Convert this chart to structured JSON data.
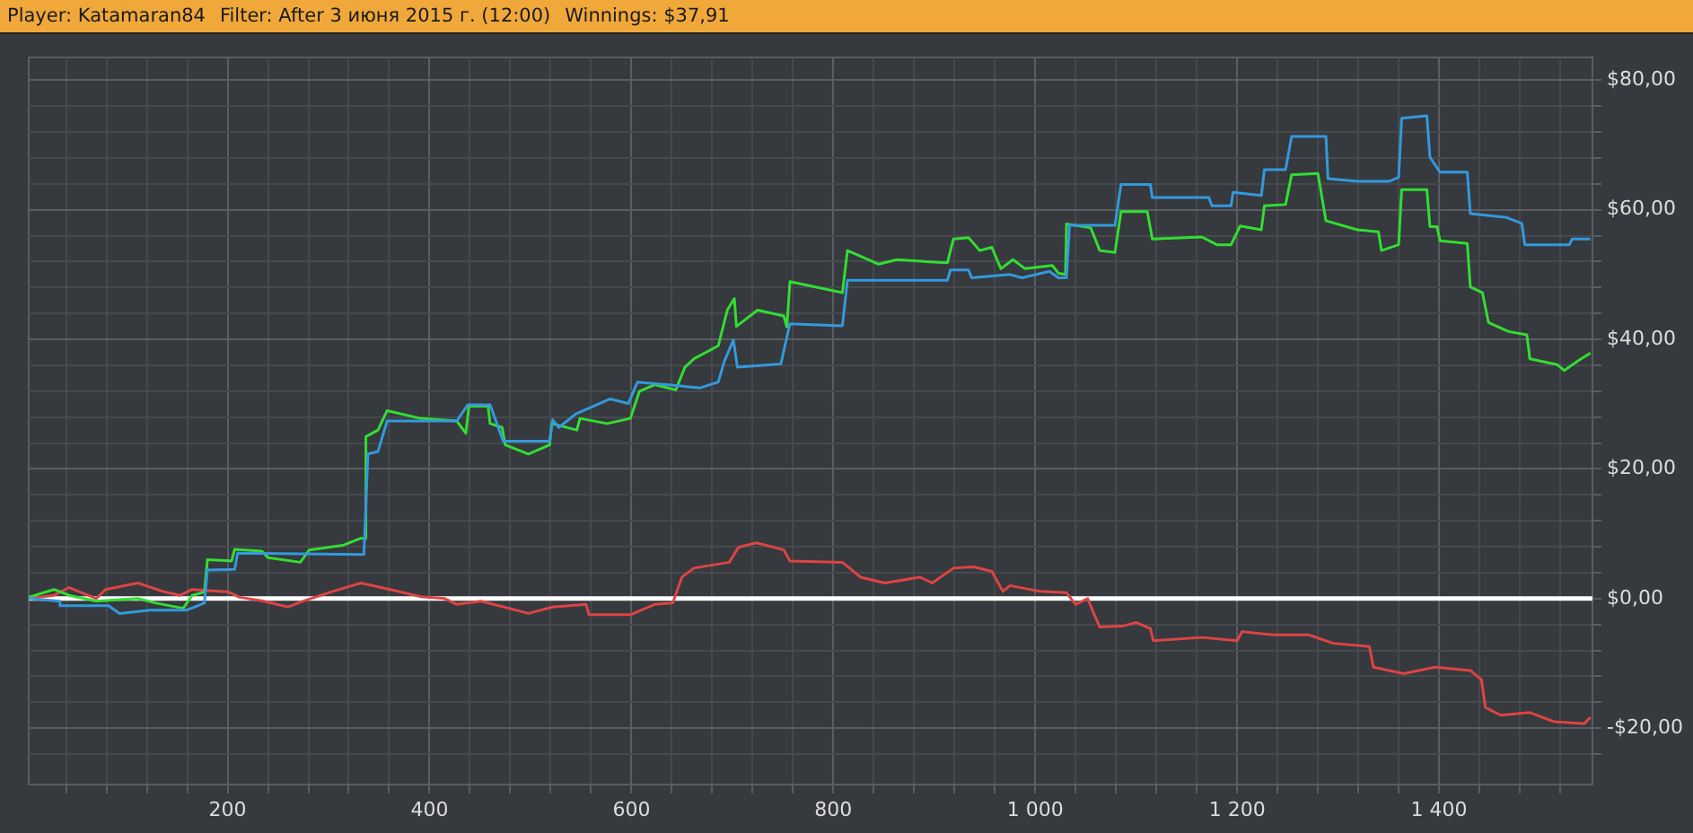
{
  "chart_data": {
    "type": "line",
    "title": "Player: Katamaran84",
    "subtitle": "Filter: After 3 июня 2015 г. (12:00)",
    "annotations": [
      "Winnings: $37,91"
    ],
    "xlim": [
      3,
      1552
    ],
    "ylim": [
      -28.7,
      83.5
    ],
    "xticks": [
      {
        "value": 40,
        "label": null
      },
      {
        "value": 80,
        "label": null
      },
      {
        "value": 120,
        "label": null
      },
      {
        "value": 160,
        "label": null
      },
      200,
      {
        "value": 240,
        "label": null
      },
      {
        "value": 280,
        "label": null
      },
      {
        "value": 320,
        "label": null
      },
      {
        "value": 360,
        "label": null
      },
      400,
      {
        "value": 440,
        "label": null
      },
      {
        "value": 480,
        "label": null
      },
      {
        "value": 520,
        "label": null
      },
      {
        "value": 560,
        "label": null
      },
      600,
      {
        "value": 640,
        "label": null
      },
      {
        "value": 680,
        "label": null
      },
      {
        "value": 720,
        "label": null
      },
      {
        "value": 760,
        "label": null
      },
      800,
      {
        "value": 840,
        "label": null
      },
      {
        "value": 880,
        "label": null
      },
      {
        "value": 920,
        "label": null
      },
      {
        "value": 960,
        "label": null
      },
      {
        "value": 1000,
        "label": "1 000"
      },
      {
        "value": 1040,
        "label": null
      },
      {
        "value": 1080,
        "label": null
      },
      {
        "value": 1120,
        "label": null
      },
      {
        "value": 1160,
        "label": null
      },
      {
        "value": 1200,
        "label": "1 200"
      },
      {
        "value": 1240,
        "label": null
      },
      {
        "value": 1280,
        "label": null
      },
      {
        "value": 1320,
        "label": null
      },
      {
        "value": 1360,
        "label": null
      },
      {
        "value": 1400,
        "label": "1 400"
      },
      {
        "value": 1440,
        "label": null
      },
      {
        "value": 1480,
        "label": null
      },
      {
        "value": 1520,
        "label": null
      }
    ],
    "yticks": [
      {
        "value": -24,
        "label": null
      },
      {
        "value": -20,
        "label": "-$20,00"
      },
      {
        "value": -16,
        "label": null
      },
      {
        "value": -12,
        "label": null
      },
      {
        "value": -8,
        "label": null
      },
      {
        "value": -4,
        "label": null
      },
      {
        "value": 0,
        "label": "$0,00"
      },
      {
        "value": 4,
        "label": null
      },
      {
        "value": 8,
        "label": null
      },
      {
        "value": 12,
        "label": null
      },
      {
        "value": 16,
        "label": null
      },
      {
        "value": 20,
        "label": "$20,00"
      },
      {
        "value": 24,
        "label": null
      },
      {
        "value": 28,
        "label": null
      },
      {
        "value": 32,
        "label": null
      },
      {
        "value": 36,
        "label": null
      },
      {
        "value": 40,
        "label": "$40,00"
      },
      {
        "value": 44,
        "label": null
      },
      {
        "value": 48,
        "label": null
      },
      {
        "value": 52,
        "label": null
      },
      {
        "value": 56,
        "label": null
      },
      {
        "value": 60,
        "label": "$60,00"
      },
      {
        "value": 64,
        "label": null
      },
      {
        "value": 68,
        "label": null
      },
      {
        "value": 72,
        "label": null
      },
      {
        "value": 76,
        "label": null
      },
      {
        "value": 80,
        "label": "$80,00"
      }
    ],
    "grid": true,
    "legend": false,
    "marker": "none",
    "line_style": "solid",
    "ref_lines": [
      {
        "axis": "y",
        "value": 0,
        "label": null,
        "color": "#ffffff"
      }
    ],
    "series": [
      {
        "color": "#3399dd",
        "x": [
          3,
          34,
          34,
          82,
          93,
          123,
          159,
          177,
          180,
          207,
          210,
          335,
          339,
          349,
          358,
          427,
          438,
          460,
          473,
          519,
          522,
          528,
          545,
          579,
          597,
          606,
          642,
          668,
          686,
          692,
          701,
          705,
          748,
          757,
          809,
          814,
          913,
          916,
          934,
          937,
          975,
          987,
          1014,
          1023,
          1031,
          1034,
          1079,
          1085,
          1114,
          1116,
          1172,
          1175,
          1194,
          1196,
          1224,
          1227,
          1248,
          1254,
          1288,
          1290,
          1319,
          1351,
          1360,
          1363,
          1388,
          1391,
          1401,
          1428,
          1431,
          1467,
          1482,
          1485,
          1529,
          1532,
          1550
        ],
        "values": [
          0,
          -0.4,
          -1.1,
          -1.1,
          -2.3,
          -1.8,
          -1.8,
          -0.7,
          4.4,
          4.5,
          7,
          6.8,
          22.3,
          22.7,
          27.4,
          27.4,
          29.9,
          29.9,
          24.3,
          24.3,
          27.6,
          26.4,
          28.5,
          30.8,
          30.1,
          33.4,
          32.9,
          32.5,
          33.4,
          36.6,
          39.9,
          35.7,
          36.2,
          42.4,
          42.1,
          49.1,
          49.1,
          50.7,
          50.7,
          49.5,
          50,
          49.5,
          50.5,
          49.5,
          49.5,
          57.6,
          57.6,
          63.9,
          63.9,
          61.9,
          61.9,
          60.6,
          60.6,
          62.7,
          62.2,
          66.2,
          66.2,
          71.3,
          71.3,
          64.8,
          64.4,
          64.4,
          65,
          74.1,
          74.5,
          68.1,
          65.8,
          65.8,
          59.4,
          58.8,
          57.9,
          54.6,
          54.6,
          55.5,
          55.5
        ]
      },
      {
        "color": "#33dd33",
        "x": [
          3,
          28,
          43,
          70,
          111,
          129,
          156,
          165,
          177,
          180,
          204,
          207,
          234,
          240,
          272,
          281,
          314,
          332,
          336,
          337,
          349,
          358,
          391,
          427,
          436,
          439,
          458,
          460,
          472,
          475,
          498,
          519,
          521,
          546,
          549,
          576,
          599,
          608,
          623,
          644,
          653,
          662,
          686,
          695,
          702,
          704,
          725,
          751,
          754,
          757,
          809,
          814,
          845,
          863,
          892,
          913,
          919,
          934,
          945,
          957,
          966,
          978,
          990,
          1017,
          1023,
          1030,
          1031,
          1055,
          1064,
          1079,
          1085,
          1111,
          1116,
          1165,
          1180,
          1194,
          1203,
          1224,
          1227,
          1248,
          1254,
          1280,
          1288,
          1319,
          1340,
          1343,
          1360,
          1363,
          1388,
          1391,
          1398,
          1401,
          1428,
          1431,
          1443,
          1449,
          1469,
          1487,
          1490,
          1517,
          1524,
          1537,
          1550
        ],
        "values": [
          0.2,
          1.4,
          0.5,
          -0.4,
          0,
          -0.7,
          -1.5,
          0.5,
          1,
          6,
          5.8,
          7.6,
          7.3,
          6.3,
          5.6,
          7.5,
          8.2,
          9.3,
          9.3,
          25,
          26,
          29,
          27.8,
          27.4,
          25.5,
          29.7,
          29.7,
          27,
          26.4,
          23.7,
          22.3,
          23.7,
          27,
          26,
          27.8,
          27,
          27.8,
          32,
          33,
          32.2,
          35.7,
          37,
          39,
          44.5,
          46.3,
          42,
          44.5,
          43.6,
          41.9,
          48.9,
          47.2,
          53.7,
          51.6,
          52.3,
          52,
          51.8,
          55.5,
          55.7,
          53.7,
          54.2,
          50.9,
          52.3,
          50.9,
          51.4,
          50.2,
          50,
          57.8,
          57.2,
          53.7,
          53.4,
          59.7,
          59.7,
          55.5,
          55.8,
          54.6,
          54.6,
          57.5,
          56.9,
          60.6,
          60.8,
          65.4,
          65.6,
          58.3,
          56.9,
          56.6,
          53.7,
          54.6,
          63.1,
          63.1,
          57.4,
          57.4,
          55.2,
          54.8,
          48.1,
          47.2,
          42.6,
          41.2,
          40.7,
          37,
          36.1,
          35.2,
          36.6,
          37.9
        ]
      },
      {
        "color": "#dd4444",
        "x": [
          3,
          28,
          43,
          70,
          79,
          111,
          138,
          153,
          165,
          201,
          212,
          236,
          260,
          275,
          302,
          332,
          361,
          391,
          415,
          427,
          451,
          474,
          498,
          522,
          555,
          558,
          599,
          623,
          641,
          650,
          662,
          697,
          706,
          724,
          751,
          757,
          809,
          827,
          851,
          886,
          898,
          919,
          939,
          957,
          968,
          975,
          1005,
          1031,
          1040,
          1052,
          1058,
          1064,
          1088,
          1100,
          1114,
          1117,
          1165,
          1200,
          1205,
          1235,
          1271,
          1295,
          1331,
          1335,
          1365,
          1396,
          1431,
          1442,
          1446,
          1461,
          1490,
          1514,
          1544,
          1550
        ],
        "values": [
          0,
          0.5,
          1.7,
          0,
          1.4,
          2.4,
          1,
          0.5,
          1.4,
          1,
          0.2,
          -0.4,
          -1.3,
          -0.4,
          1,
          2.4,
          1.4,
          0.3,
          0,
          -0.9,
          -0.4,
          -1.3,
          -2.3,
          -1.3,
          -0.9,
          -2.5,
          -2.5,
          -0.9,
          -0.7,
          3.3,
          4.7,
          5.6,
          7.9,
          8.6,
          7.5,
          5.8,
          5.6,
          3.3,
          2.4,
          3.3,
          2.4,
          4.7,
          4.9,
          4.2,
          1.1,
          2,
          1.1,
          0.9,
          -0.9,
          0,
          -2.3,
          -4.4,
          -4.2,
          -3.7,
          -4.6,
          -6.5,
          -6,
          -6.5,
          -5.1,
          -5.6,
          -5.6,
          -6.9,
          -7.4,
          -10.6,
          -11.6,
          -10.6,
          -11.1,
          -12.5,
          -16.8,
          -18,
          -17.6,
          -19,
          -19.3,
          -18.3
        ]
      }
    ]
  }
}
